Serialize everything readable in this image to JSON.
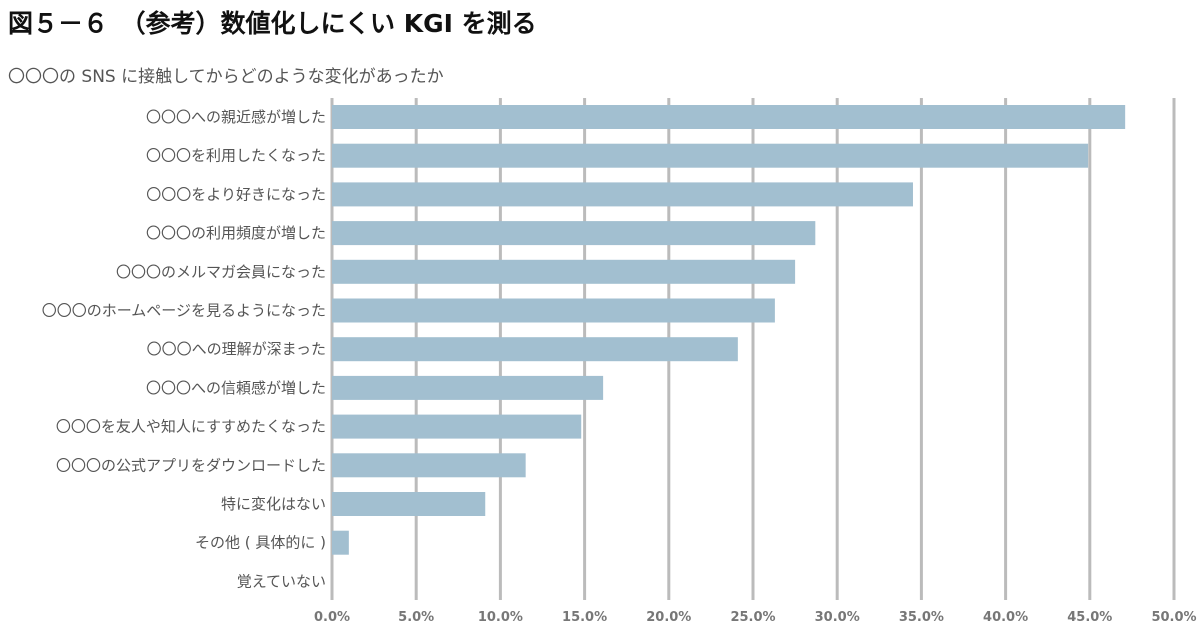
{
  "figure": {
    "title": "図５－６　（参考）数値化しにくい KGI を測る",
    "subtitle": "〇〇〇の SNS に接触してからどのような変化があったか"
  },
  "chart_data": {
    "type": "bar",
    "orientation": "horizontal",
    "categories": [
      "〇〇〇への親近感が増した",
      "〇〇〇を利用したくなった",
      "〇〇〇をより好きになった",
      "〇〇〇の利用頻度が増した",
      "〇〇〇のメルマガ会員になった",
      "〇〇〇のホームページを見るようになった",
      "〇〇〇への理解が深まった",
      "〇〇〇への信頼感が増した",
      "〇〇〇を友人や知人にすすめたくなった",
      "〇〇〇の公式アプリをダウンロードした",
      "特に変化はない",
      "その他 ( 具体的に )",
      "覚えていない"
    ],
    "values": [
      47.1,
      44.9,
      34.5,
      28.7,
      27.5,
      26.3,
      24.1,
      16.1,
      14.8,
      11.5,
      9.1,
      1.0,
      0.0
    ],
    "xlim": [
      0,
      50
    ],
    "ticks": [
      "0.0%",
      "5.0%",
      "10.0%",
      "15.0%",
      "20.0%",
      "25.0%",
      "30.0%",
      "35.0%",
      "40.0%",
      "45.0%",
      "50.0%"
    ],
    "tick_values": [
      0,
      5,
      10,
      15,
      20,
      25,
      30,
      35,
      40,
      45,
      50
    ],
    "bar_color": "#a2bfd0",
    "grid": true,
    "grid_color": "#bbbbbb",
    "legend": false
  }
}
